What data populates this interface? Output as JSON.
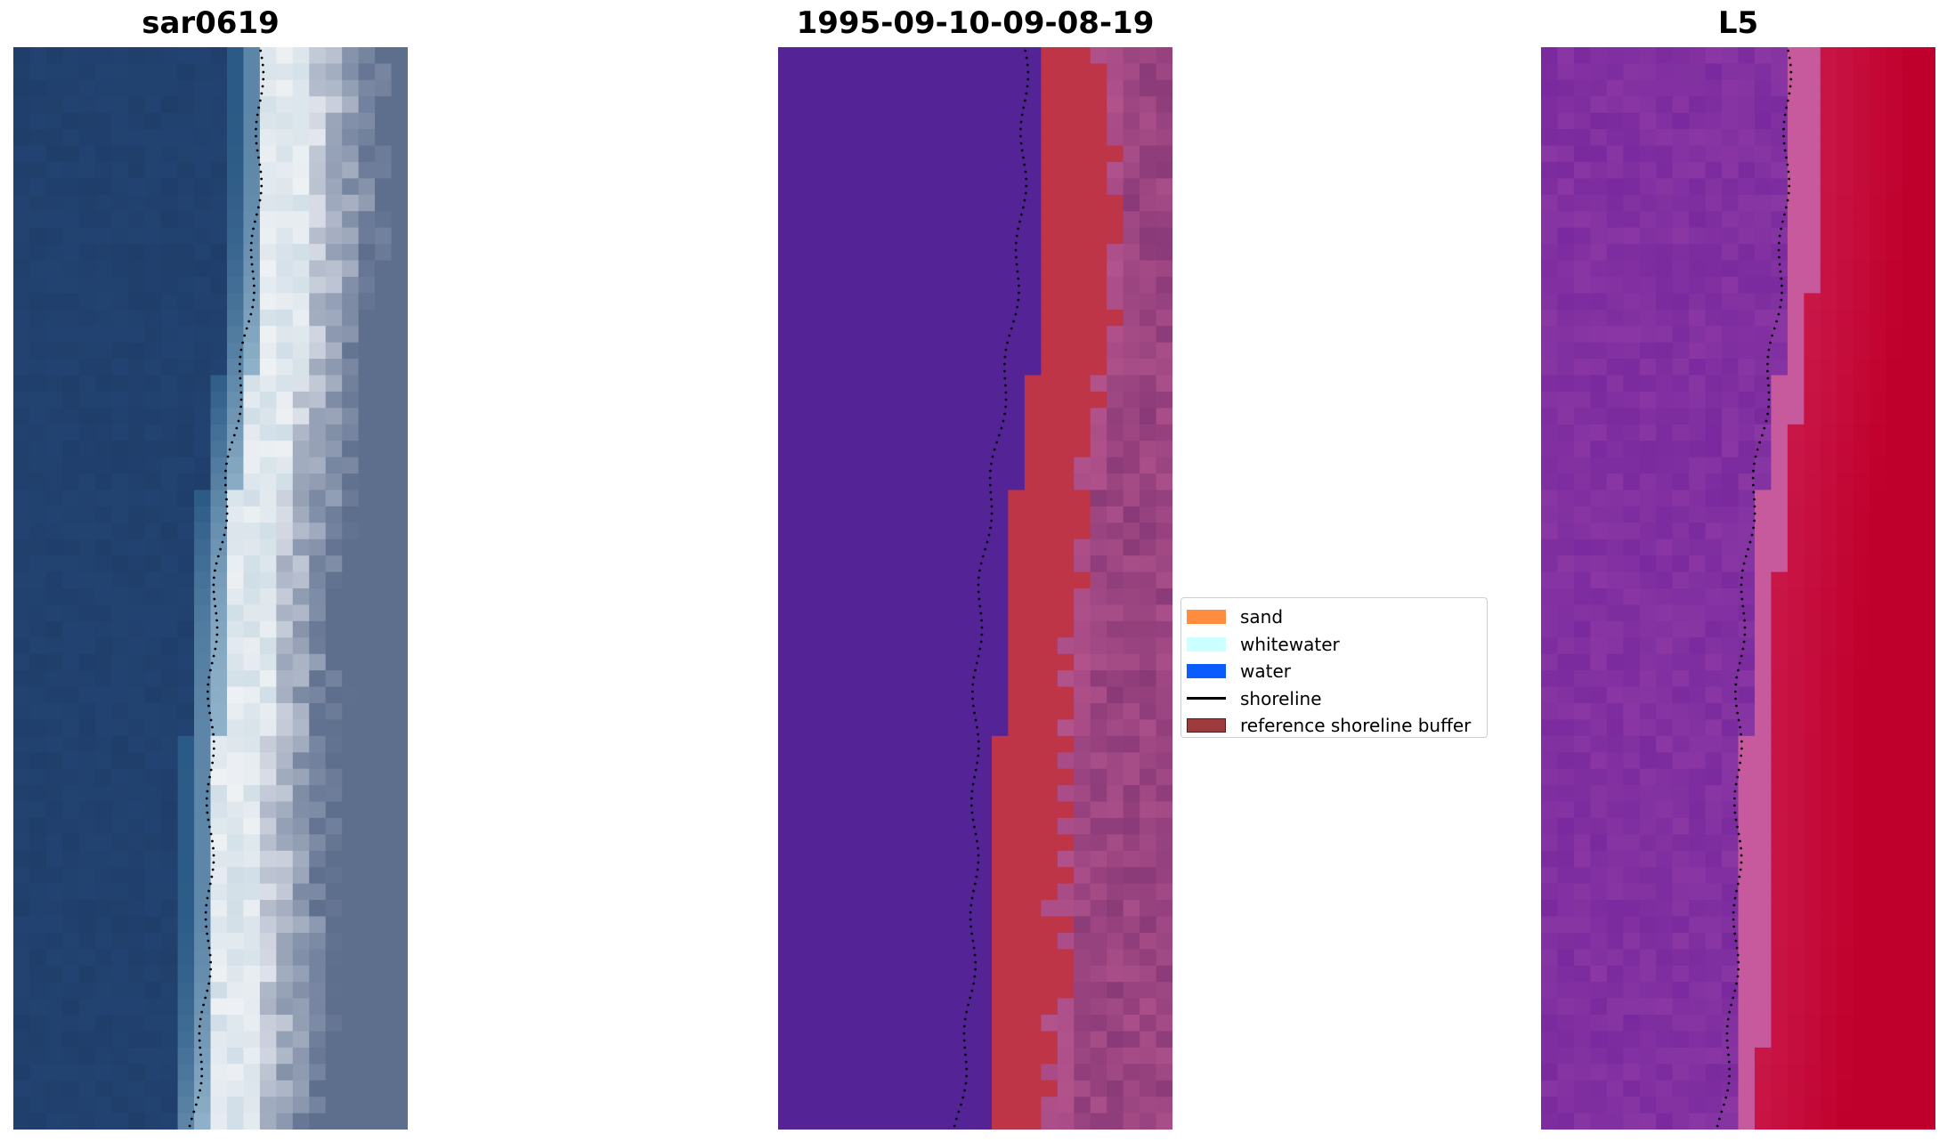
{
  "panels": [
    {
      "title": "sar0619",
      "kind": "rgb"
    },
    {
      "title": "1995-09-10-09-08-19",
      "kind": "classified"
    },
    {
      "title": "L5",
      "kind": "index"
    }
  ],
  "legend": {
    "items": [
      {
        "label": "sand",
        "color": "#ff8c3f",
        "type": "patch"
      },
      {
        "label": "whitewater",
        "color": "#ccffff",
        "type": "patch"
      },
      {
        "label": "water",
        "color": "#0a5cff",
        "type": "patch"
      },
      {
        "label": "shoreline",
        "color": "#000000",
        "type": "line"
      },
      {
        "label": "reference shoreline buffer",
        "color": "#9e3b3d",
        "type": "patch"
      }
    ]
  },
  "colors": {
    "water_deep": "#203e6a",
    "whitewater": "#eef1f4",
    "classified_water": "#542396",
    "classified_sand": "#bf3548",
    "index_low": "#7a2a9e",
    "index_high": "#c0002c"
  }
}
